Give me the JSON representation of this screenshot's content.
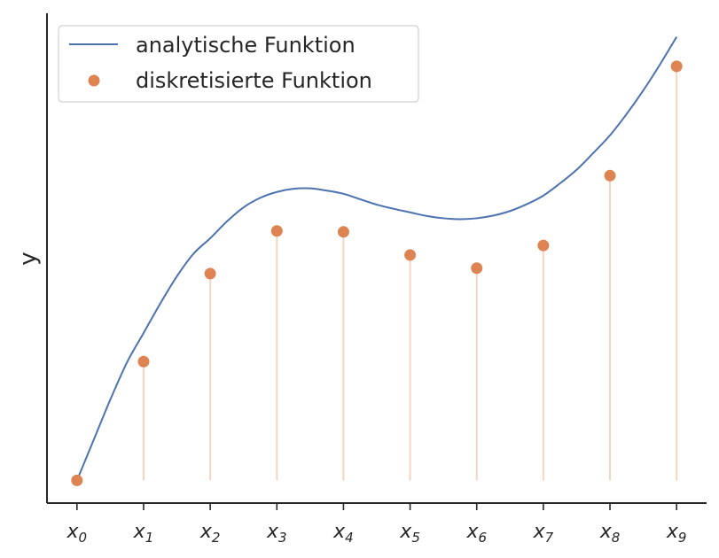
{
  "chart_data": {
    "type": "line",
    "title": "",
    "xlabel": "",
    "ylabel": "y",
    "grid": false,
    "legend_position": "top-left",
    "x": [
      0,
      1,
      2,
      3,
      4,
      5,
      6,
      7,
      8,
      9
    ],
    "x_tick_labels": [
      {
        "base": "x",
        "sub": "0"
      },
      {
        "base": "x",
        "sub": "1"
      },
      {
        "base": "x",
        "sub": "2"
      },
      {
        "base": "x",
        "sub": "3"
      },
      {
        "base": "x",
        "sub": "4"
      },
      {
        "base": "x",
        "sub": "5"
      },
      {
        "base": "x",
        "sub": "6"
      },
      {
        "base": "x",
        "sub": "7"
      },
      {
        "base": "x",
        "sub": "8"
      },
      {
        "base": "x",
        "sub": "9"
      }
    ],
    "xlim": [
      -0.45,
      9.45
    ],
    "ylim": [
      -0.05,
      1.03
    ],
    "series": [
      {
        "name": "analytische Funktion",
        "style": "line",
        "color": "#4c72b0",
        "x": [
          0,
          0.25,
          0.5,
          0.75,
          1,
          1.25,
          1.5,
          1.75,
          2,
          2.25,
          2.5,
          2.75,
          3,
          3.25,
          3.5,
          3.75,
          4,
          4.25,
          4.5,
          4.75,
          5,
          5.25,
          5.5,
          5.75,
          6,
          6.25,
          6.5,
          6.75,
          7,
          7.25,
          7.5,
          7.75,
          8,
          8.25,
          8.5,
          8.75,
          9
        ],
        "y": [
          0.0,
          0.089,
          0.178,
          0.26,
          0.325,
          0.39,
          0.45,
          0.5,
          0.534,
          0.571,
          0.602,
          0.623,
          0.636,
          0.643,
          0.644,
          0.639,
          0.632,
          0.62,
          0.608,
          0.599,
          0.591,
          0.583,
          0.578,
          0.576,
          0.578,
          0.584,
          0.594,
          0.609,
          0.628,
          0.655,
          0.685,
          0.722,
          0.761,
          0.808,
          0.86,
          0.917,
          0.978
        ]
      },
      {
        "name": "diskretisierte Funktion",
        "style": "markers",
        "color": "#dd8452",
        "x": [
          0,
          1,
          2,
          3,
          4,
          5,
          6,
          7,
          8,
          9
        ],
        "y": [
          0.0,
          0.262,
          0.456,
          0.55,
          0.548,
          0.497,
          0.468,
          0.518,
          0.672,
          0.913
        ]
      }
    ],
    "stem_color": "#f5d5c2"
  }
}
